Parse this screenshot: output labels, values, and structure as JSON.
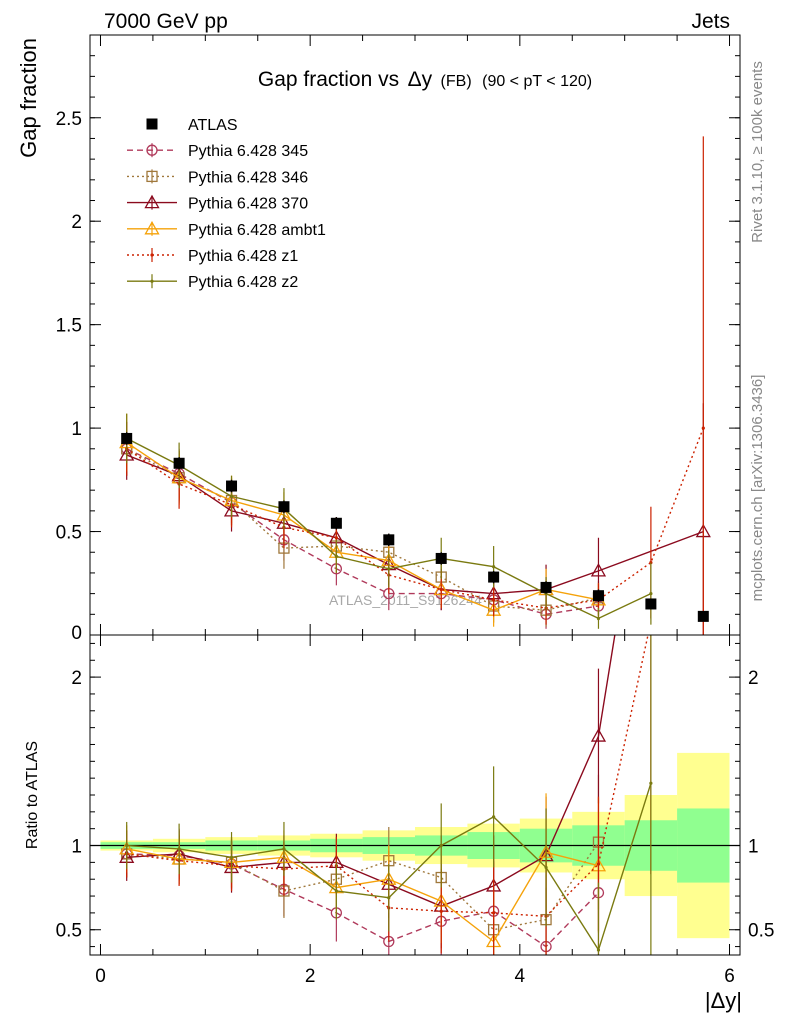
{
  "header": {
    "left": "7000 GeV pp",
    "right": "Jets",
    "side_top": "Rivet 3.1.10, ≥ 100k events",
    "side_bottom": "mcplots.cern.ch [arXiv:1306.3436]",
    "watermark": "ATLAS_2011_S9126244"
  },
  "chart_data": [
    {
      "type": "line",
      "title_main": "Gap fraction vs",
      "title_delta": "Δy",
      "title_sub": "(FB)",
      "title_range": "(90 < pT < 120)",
      "ylabel": "Gap fraction",
      "xlim": [
        -0.1,
        6.1
      ],
      "ylim": [
        0,
        2.9
      ],
      "yticks": [
        {
          "v": 0.5,
          "label": "0.5"
        },
        {
          "v": 1,
          "label": "1"
        },
        {
          "v": 1.5,
          "label": "1.5"
        },
        {
          "v": 2,
          "label": "2"
        },
        {
          "v": 2.5,
          "label": "2.5"
        }
      ],
      "edge_label": "0",
      "x": [
        0.25,
        0.75,
        1.25,
        1.75,
        2.25,
        2.75,
        3.25,
        3.75,
        4.25,
        4.75,
        5.25,
        5.75
      ],
      "data": {
        "name": "ATLAS",
        "values": [
          0.95,
          0.83,
          0.72,
          0.62,
          0.54,
          0.46,
          0.37,
          0.28,
          0.23,
          0.19,
          0.15,
          0.09
        ],
        "errors": [
          0.03,
          0.03,
          0.03,
          0.03,
          0.03,
          0.03,
          0.03,
          0.03,
          0.03,
          0.03,
          0.02,
          0.02
        ]
      },
      "series": [
        {
          "name": "Pythia 6.428 345",
          "color": "#b03a5b",
          "dash": "6,4",
          "marker": "circle",
          "values": [
            0.9,
            0.78,
            0.64,
            0.46,
            0.32,
            0.2,
            0.2,
            0.17,
            0.1,
            0.14,
            null,
            null
          ],
          "errors": [
            0.13,
            0.12,
            0.11,
            0.1,
            0.08,
            0.08,
            0.08,
            0.08,
            0.07,
            0.07,
            null,
            null
          ]
        },
        {
          "name": "Pythia 6.428 346",
          "color": "#a0783c",
          "dash": "2,3",
          "marker": "square",
          "values": [
            0.9,
            0.76,
            0.65,
            0.42,
            0.43,
            0.4,
            0.28,
            0.14,
            0.12,
            0.18,
            null,
            null
          ],
          "errors": [
            0.13,
            0.12,
            0.11,
            0.1,
            0.09,
            0.09,
            0.09,
            0.08,
            0.08,
            0.08,
            null,
            null
          ]
        },
        {
          "name": "Pythia 6.428 370",
          "color": "#8b0a1e",
          "dash": "",
          "marker": "triangle",
          "values": [
            0.87,
            0.77,
            0.6,
            0.54,
            0.47,
            0.34,
            0.22,
            0.2,
            0.22,
            0.31,
            null,
            0.5
          ],
          "errors": [
            0.12,
            0.12,
            0.1,
            0.1,
            0.1,
            0.1,
            0.1,
            0.1,
            0.12,
            0.16,
            null,
            0.62
          ]
        },
        {
          "name": "Pythia 6.428 ambt1",
          "color": "#f5a20a",
          "dash": "",
          "marker": "triangle",
          "values": [
            0.93,
            0.76,
            0.65,
            0.58,
            0.4,
            0.36,
            0.22,
            0.12,
            0.22,
            0.17,
            null,
            null
          ],
          "errors": [
            0.14,
            0.13,
            0.12,
            0.11,
            0.1,
            0.1,
            0.09,
            0.08,
            0.1,
            0.08,
            null,
            null
          ]
        },
        {
          "name": "Pythia 6.428 z1",
          "color": "#cc2200",
          "dash": "2,3",
          "marker": "dot",
          "values": [
            0.9,
            0.73,
            0.63,
            0.52,
            0.47,
            0.29,
            0.22,
            0.17,
            0.13,
            0.17,
            0.35,
            1.0
          ],
          "errors": [
            0.13,
            0.12,
            0.11,
            0.1,
            0.1,
            0.09,
            0.09,
            0.08,
            0.08,
            0.08,
            0.27,
            1.41
          ]
        },
        {
          "name": "Pythia 6.428 z2",
          "color": "#7a7a10",
          "dash": "",
          "marker": "dot",
          "values": [
            0.95,
            0.82,
            0.67,
            0.61,
            0.38,
            0.32,
            0.37,
            0.33,
            0.2,
            0.08,
            0.2,
            null
          ],
          "errors": [
            0.12,
            0.11,
            0.1,
            0.1,
            0.08,
            0.09,
            0.1,
            0.1,
            0.08,
            0.05,
            0.15,
            null
          ]
        }
      ]
    },
    {
      "type": "line",
      "ylabel": "Ratio to ATLAS",
      "xlabel": "|Δy|",
      "xlim": [
        -0.1,
        6.1
      ],
      "ylim": [
        0.35,
        2.25
      ],
      "xticks": [
        {
          "v": 0,
          "label": "0"
        },
        {
          "v": 2,
          "label": "2"
        },
        {
          "v": 4,
          "label": "4"
        },
        {
          "v": 6,
          "label": "6"
        }
      ],
      "yticks": [
        {
          "v": 0.5,
          "label": "0.5"
        },
        {
          "v": 1,
          "label": "1"
        },
        {
          "v": 2,
          "label": "2"
        }
      ],
      "bands": {
        "edges": [
          0,
          0.5,
          1,
          1.5,
          2,
          2.5,
          3,
          3.5,
          4,
          4.5,
          5,
          5.5,
          6
        ],
        "stat": [
          0.02,
          0.02,
          0.03,
          0.03,
          0.04,
          0.05,
          0.06,
          0.08,
          0.1,
          0.12,
          0.15,
          0.22
        ],
        "total": [
          0.03,
          0.04,
          0.05,
          0.06,
          0.07,
          0.09,
          0.11,
          0.13,
          0.16,
          0.2,
          0.3,
          0.55
        ]
      },
      "ratios": [
        [
          0.95,
          0.94,
          0.89,
          0.74,
          0.6,
          0.43,
          0.55,
          0.61,
          0.4,
          0.72,
          null,
          null
        ],
        [
          0.95,
          0.92,
          0.9,
          0.73,
          0.8,
          0.91,
          0.81,
          0.5,
          0.56,
          1.02,
          null,
          null
        ],
        [
          0.93,
          0.95,
          0.87,
          0.9,
          0.9,
          0.77,
          0.64,
          0.76,
          0.94,
          1.65,
          null,
          5.5
        ],
        [
          0.98,
          0.92,
          0.9,
          0.93,
          0.75,
          0.8,
          0.67,
          0.43,
          0.96,
          0.88,
          null,
          null
        ],
        [
          0.95,
          0.91,
          0.88,
          0.86,
          0.88,
          0.63,
          0.61,
          0.6,
          0.58,
          0.89,
          2.33,
          11
        ],
        [
          1.0,
          0.98,
          0.93,
          0.98,
          0.73,
          0.69,
          1.0,
          1.17,
          0.87,
          0.38,
          1.37,
          null
        ]
      ],
      "ratio_errors": [
        0.14,
        0.15,
        0.15,
        0.16,
        0.17,
        0.2,
        0.25,
        0.3,
        0.35,
        0.4,
        1.5,
        3
      ]
    }
  ]
}
